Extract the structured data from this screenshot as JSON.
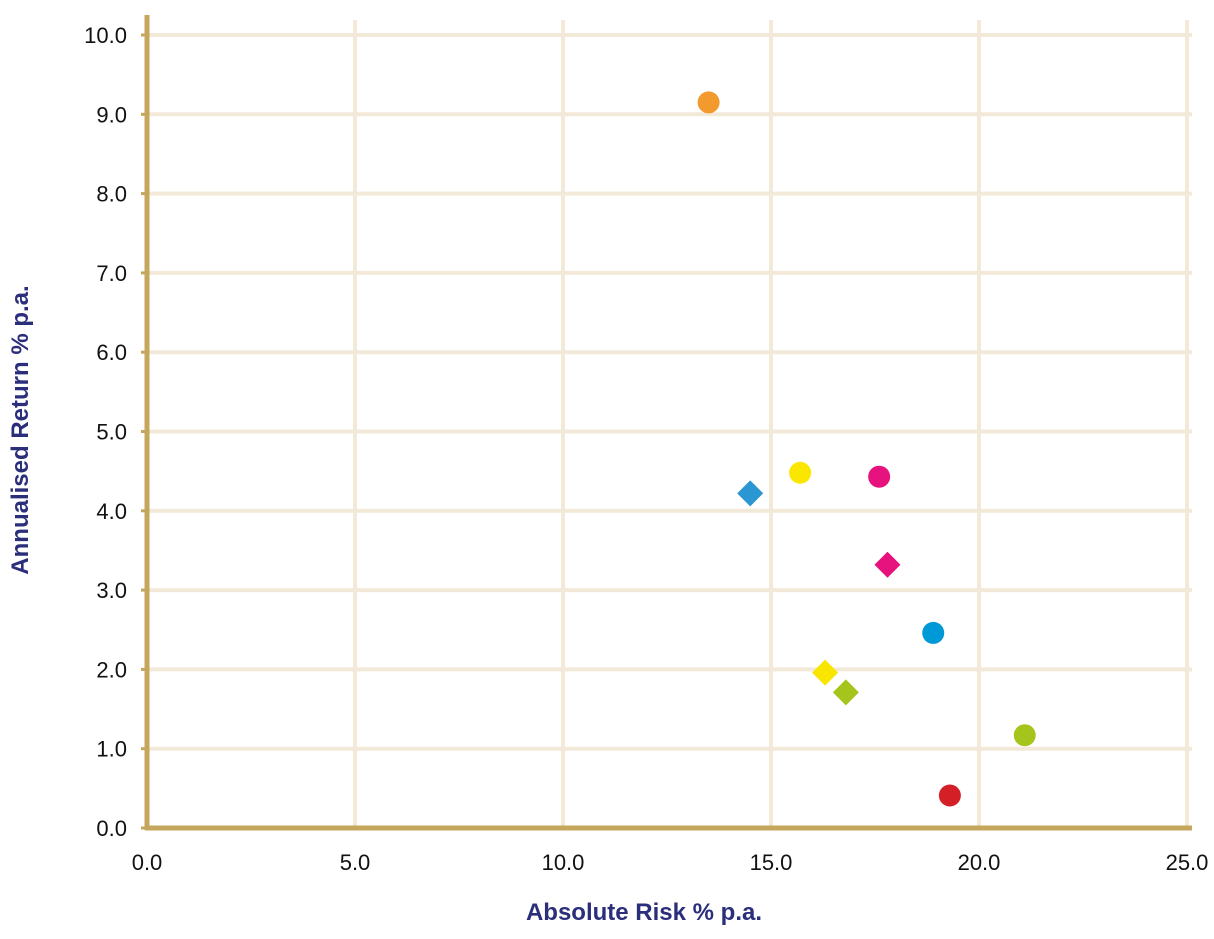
{
  "chart_data": {
    "type": "scatter",
    "title": "",
    "xlabel": "Absolute Risk % p.a.",
    "ylabel": "Annualised Return % p.a.",
    "xlim": [
      0,
      25
    ],
    "ylim": [
      0,
      10
    ],
    "x_ticks": [
      "0.0",
      "5.0",
      "10.0",
      "15.0",
      "20.0",
      "25.0"
    ],
    "y_ticks": [
      "0.0",
      "1.0",
      "2.0",
      "3.0",
      "4.0",
      "5.0",
      "6.0",
      "7.0",
      "8.0",
      "9.0",
      "10.0"
    ],
    "x_tick_values": [
      0,
      5,
      10,
      15,
      20,
      25
    ],
    "y_tick_values": [
      0,
      1,
      2,
      3,
      4,
      5,
      6,
      7,
      8,
      9,
      10
    ],
    "grid": true,
    "legend": "none",
    "points": [
      {
        "x": 13.5,
        "y": 9.15,
        "marker": "circle",
        "color": "#f39a2e"
      },
      {
        "x": 14.5,
        "y": 4.22,
        "marker": "diamond",
        "color": "#2a96d2"
      },
      {
        "x": 15.7,
        "y": 4.48,
        "marker": "circle",
        "color": "#fbe600"
      },
      {
        "x": 17.6,
        "y": 4.43,
        "marker": "circle",
        "color": "#e6127d"
      },
      {
        "x": 17.8,
        "y": 3.32,
        "marker": "diamond",
        "color": "#e6127d"
      },
      {
        "x": 18.9,
        "y": 2.46,
        "marker": "circle",
        "color": "#0099d8"
      },
      {
        "x": 16.3,
        "y": 1.96,
        "marker": "diamond",
        "color": "#f8e600"
      },
      {
        "x": 16.8,
        "y": 1.71,
        "marker": "diamond",
        "color": "#a5c51c"
      },
      {
        "x": 21.1,
        "y": 1.17,
        "marker": "circle",
        "color": "#a5c51c"
      },
      {
        "x": 19.3,
        "y": 0.41,
        "marker": "circle",
        "color": "#d51f26"
      }
    ],
    "colors": {
      "axis": "#c4a75d",
      "grid": "#f2e9d8"
    }
  }
}
